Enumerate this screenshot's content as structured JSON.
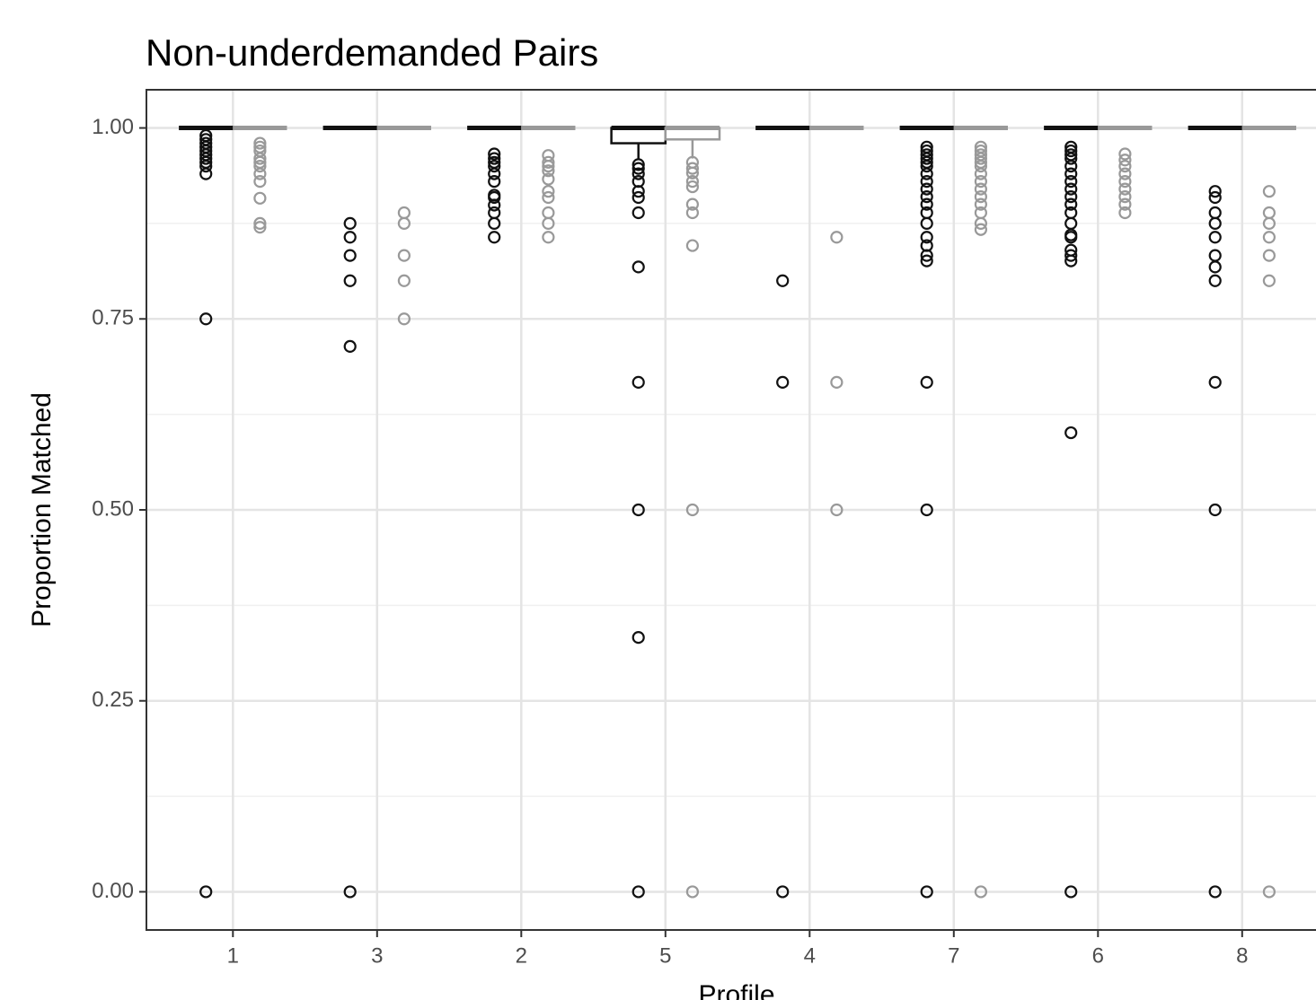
{
  "chart_data": {
    "type": "boxplot",
    "title": "Non-underdemanded Pairs",
    "x_label": "Profile",
    "y_label": "Proportion Matched",
    "categories": [
      "1",
      "3",
      "2",
      "5",
      "4",
      "7",
      "6",
      "8"
    ],
    "ylim": [
      -0.05,
      1.05
    ],
    "yticks": [
      {
        "value": 0,
        "label": "0.00"
      },
      {
        "value": 0.25,
        "label": "0.25"
      },
      {
        "value": 0.5,
        "label": "0.50"
      },
      {
        "value": 0.75,
        "label": "0.75"
      },
      {
        "value": 1,
        "label": "1.00"
      }
    ],
    "grid": true,
    "minor_grid": true,
    "series": [
      {
        "color": "#111111",
        "boxes": [
          {
            "lower": 1,
            "q1": 1,
            "median": 1,
            "q3": 1,
            "upper": 1,
            "outliers": [
              0.99,
              0.985,
              0.98,
              0.975,
              0.97,
              0.965,
              0.96,
              0.955,
              0.95,
              0.94,
              0.75,
              0
            ]
          },
          {
            "lower": 1,
            "q1": 1,
            "median": 1,
            "q3": 1,
            "upper": 1,
            "outliers": [
              0.875,
              0.857,
              0.833,
              0.8,
              0.714,
              0
            ]
          },
          {
            "lower": 1,
            "q1": 1,
            "median": 1,
            "q3": 1,
            "upper": 1,
            "outliers": [
              0.966,
              0.96,
              0.955,
              0.95,
              0.94,
              0.93,
              0.912,
              0.909,
              0.899,
              0.889,
              0.875,
              0.857
            ]
          },
          {
            "lower": 0.96,
            "q1": 0.98,
            "median": 1,
            "q3": 1,
            "upper": 1,
            "outliers": [
              0.952,
              0.947,
              0.94,
              0.93,
              0.917,
              0.909,
              0.889,
              0.818,
              0.667,
              0.5,
              0.333,
              0
            ]
          },
          {
            "lower": 1,
            "q1": 1,
            "median": 1,
            "q3": 1,
            "upper": 1,
            "outliers": [
              0.8,
              0.667,
              0
            ]
          },
          {
            "lower": 1,
            "q1": 1,
            "median": 1,
            "q3": 1,
            "upper": 1,
            "outliers": [
              0.975,
              0.97,
              0.965,
              0.96,
              0.955,
              0.95,
              0.94,
              0.93,
              0.92,
              0.91,
              0.9,
              0.889,
              0.875,
              0.857,
              0.846,
              0.833,
              0.826,
              0.667,
              0.5,
              0
            ]
          },
          {
            "lower": 1,
            "q1": 1,
            "median": 1,
            "q3": 1,
            "upper": 1,
            "outliers": [
              0.975,
              0.97,
              0.965,
              0.96,
              0.95,
              0.94,
              0.93,
              0.92,
              0.91,
              0.9,
              0.889,
              0.875,
              0.86,
              0.857,
              0.84,
              0.833,
              0.826,
              0.601,
              0
            ]
          },
          {
            "lower": 1,
            "q1": 1,
            "median": 1,
            "q3": 1,
            "upper": 1,
            "outliers": [
              0.917,
              0.909,
              0.889,
              0.875,
              0.857,
              0.833,
              0.818,
              0.8,
              0.667,
              0.5,
              0
            ]
          }
        ]
      },
      {
        "color": "#999999",
        "boxes": [
          {
            "lower": 1,
            "q1": 1,
            "median": 1,
            "q3": 1,
            "upper": 1,
            "outliers": [
              0.98,
              0.975,
              0.97,
              0.96,
              0.955,
              0.95,
              0.94,
              0.93,
              0.908,
              0.875,
              0.87
            ]
          },
          {
            "lower": 1,
            "q1": 1,
            "median": 1,
            "q3": 1,
            "upper": 1,
            "outliers": [
              0.889,
              0.875,
              0.833,
              0.8,
              0.75
            ]
          },
          {
            "lower": 1,
            "q1": 1,
            "median": 1,
            "q3": 1,
            "upper": 1,
            "outliers": [
              0.964,
              0.955,
              0.95,
              0.944,
              0.933,
              0.917,
              0.909,
              0.889,
              0.875,
              0.857
            ]
          },
          {
            "lower": 0.96,
            "q1": 0.985,
            "median": 1,
            "q3": 1,
            "upper": 1,
            "outliers": [
              0.955,
              0.947,
              0.941,
              0.93,
              0.923,
              0.9,
              0.889,
              0.846,
              0.5,
              0
            ]
          },
          {
            "lower": 1,
            "q1": 1,
            "median": 1,
            "q3": 1,
            "upper": 1,
            "outliers": [
              0.857,
              0.667,
              0.5
            ]
          },
          {
            "lower": 1,
            "q1": 1,
            "median": 1,
            "q3": 1,
            "upper": 1,
            "outliers": [
              0.975,
              0.97,
              0.965,
              0.96,
              0.955,
              0.95,
              0.94,
              0.93,
              0.92,
              0.91,
              0.9,
              0.889,
              0.875,
              0.867,
              0
            ]
          },
          {
            "lower": 1,
            "q1": 1,
            "median": 1,
            "q3": 1,
            "upper": 1,
            "outliers": [
              0.966,
              0.958,
              0.95,
              0.94,
              0.93,
              0.92,
              0.91,
              0.9,
              0.889
            ]
          },
          {
            "lower": 1,
            "q1": 1,
            "median": 1,
            "q3": 1,
            "upper": 1,
            "outliers": [
              0.917,
              0.889,
              0.875,
              0.857,
              0.833,
              0.8,
              0
            ]
          }
        ]
      }
    ]
  }
}
